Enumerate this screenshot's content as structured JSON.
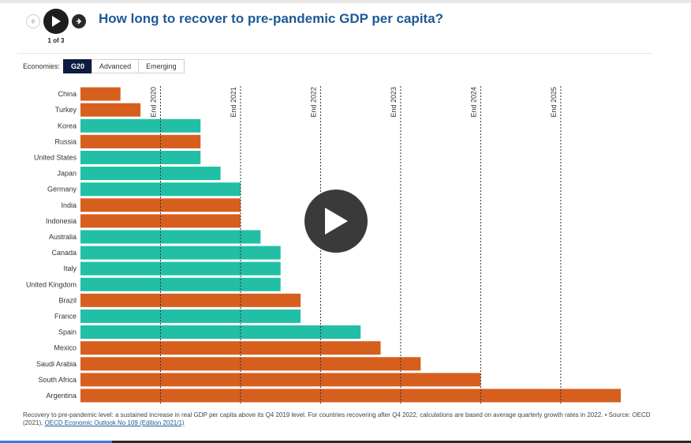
{
  "nav": {
    "counter": "1 of 3",
    "prev_icon": "arrow-left-icon",
    "play_icon": "play-icon",
    "next_icon": "arrow-right-icon"
  },
  "title": "How long to recover to pre-pandemic GDP per capita?",
  "filters": {
    "label": "Economies:",
    "options": [
      "G20",
      "Advanced",
      "Emerging"
    ],
    "selected": "G20"
  },
  "colors": {
    "advanced": "#22bfa6",
    "emerging": "#d65f1e",
    "title": "#1d5a96",
    "selected_filter": "#0d1b3f"
  },
  "chart_data": {
    "type": "bar",
    "orientation": "horizontal",
    "title": "How long to recover to pre-pandemic GDP per capita?",
    "value_unit": "quarters after Q4 2019",
    "xlim": [
      0,
      27
    ],
    "reference_lines": [
      {
        "label": "End 2020",
        "value": 4
      },
      {
        "label": "End 2021",
        "value": 8
      },
      {
        "label": "End 2022",
        "value": 12
      },
      {
        "label": "End 2023",
        "value": 16
      },
      {
        "label": "End 2024",
        "value": 20
      },
      {
        "label": "End 2025",
        "value": 24
      }
    ],
    "categories": [
      "China",
      "Turkey",
      "Korea",
      "Russia",
      "United States",
      "Japan",
      "Germany",
      "India",
      "Indonesia",
      "Australia",
      "Canada",
      "Italy",
      "United Kingdom",
      "Brazil",
      "France",
      "Spain",
      "Mexico",
      "Saudi Arabia",
      "South Africa",
      "Argentina"
    ],
    "values": [
      2,
      3,
      6,
      6,
      6,
      7,
      8,
      8,
      8,
      9,
      10,
      10,
      10,
      11,
      11,
      14,
      15,
      17,
      20,
      27
    ],
    "groups": [
      "emerging",
      "emerging",
      "advanced",
      "emerging",
      "advanced",
      "advanced",
      "advanced",
      "emerging",
      "emerging",
      "advanced",
      "advanced",
      "advanced",
      "advanced",
      "emerging",
      "advanced",
      "advanced",
      "emerging",
      "emerging",
      "emerging",
      "emerging"
    ],
    "legend": "none"
  },
  "video_overlay_icon": "play-icon",
  "footnote": {
    "text": "Recovery to pre-pandemic level: a sustained increase in real GDP per capita above its Q4 2019 level. For countries recovering after Q4 2022, calculations are based on average quarterly growth rates in 2022. • Source: OECD (2021), ",
    "link": "OECD Economic Outlook No 109 (Edition 2021/1)"
  }
}
